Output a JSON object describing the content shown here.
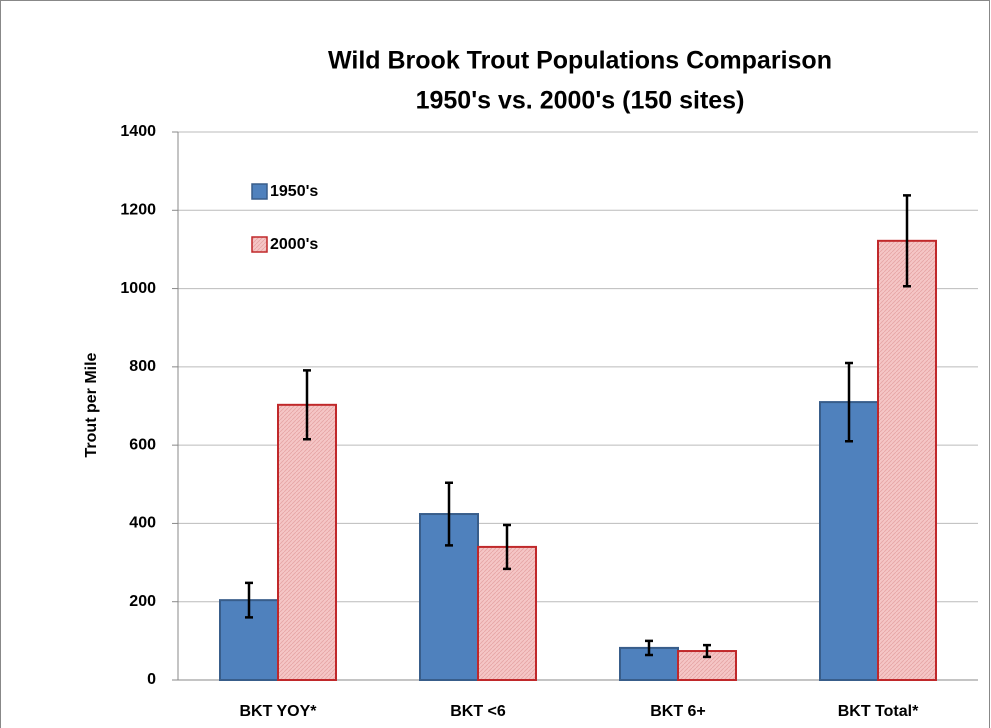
{
  "chart_data": {
    "type": "bar",
    "title": "Wild Brook Trout Populations Comparison",
    "subtitle": "1950's vs. 2000's (150 sites)",
    "ylabel": "Trout per Mile",
    "categories": [
      "BKT YOY*",
      "BKT <6",
      "BKT 6+",
      "BKT Total*"
    ],
    "series": [
      {
        "name": "1950's",
        "color": "#4f81bd",
        "edgecolor": "#385d8a",
        "values": [
          204,
          424,
          82,
          710
        ],
        "errors": [
          44,
          80,
          18,
          100
        ]
      },
      {
        "name": "2000's",
        "color": "#f5c6c6",
        "edgecolor": "#c0282a",
        "values": [
          703,
          340,
          74,
          1122
        ],
        "errors": [
          88,
          56,
          15,
          116
        ]
      }
    ],
    "ylim": [
      0,
      1400
    ],
    "yticks": [
      0,
      200,
      400,
      600,
      800,
      1000,
      1200,
      1400
    ],
    "grid": true,
    "legend": "upper left"
  }
}
